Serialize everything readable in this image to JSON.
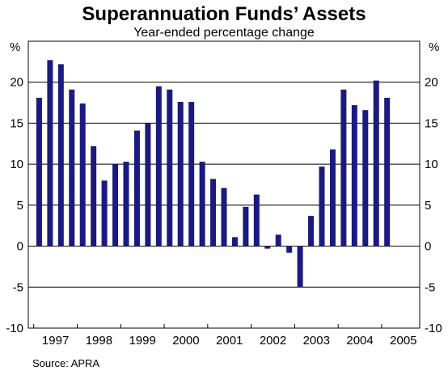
{
  "chart_data": {
    "type": "bar",
    "title": "Superannuation Funds’ Assets",
    "subtitle": "Year-ended percentage change",
    "ylabel_left": "%",
    "ylabel_right": "%",
    "ylim": [
      -10,
      25
    ],
    "yticks": [
      -10,
      -5,
      0,
      5,
      10,
      15,
      20
    ],
    "xlim": [
      1996.75,
      2005.75
    ],
    "x_labels": [
      "1997",
      "1998",
      "1999",
      "2000",
      "2001",
      "2002",
      "2003",
      "2004",
      "2005"
    ],
    "bar_color": "#1a1a80",
    "series": [
      {
        "x": [
          1997.0,
          1997.25,
          1997.5,
          1997.75,
          1998.0,
          1998.25,
          1998.5,
          1998.75,
          1999.0,
          1999.25,
          1999.5,
          1999.75,
          2000.0,
          2000.25,
          2000.5,
          2000.75,
          2001.0,
          2001.25,
          2001.5,
          2001.75,
          2002.0,
          2002.25,
          2002.5,
          2002.75,
          2003.0,
          2003.25,
          2003.5,
          2003.75,
          2004.0,
          2004.25,
          2004.5,
          2004.75,
          2005.0,
          2005.25
        ],
        "values": [
          18.1,
          22.7,
          22.2,
          19.1,
          17.4,
          12.2,
          8.0,
          10.0,
          10.3,
          14.1,
          15.0,
          19.5,
          19.1,
          17.6,
          17.6,
          10.3,
          8.2,
          7.1,
          1.1,
          4.8,
          6.3,
          -0.3,
          1.4,
          -0.8,
          -5.0,
          3.7,
          9.7,
          11.8,
          19.1,
          17.2,
          16.6,
          20.2,
          18.1,
          null
        ]
      }
    ]
  },
  "source": "Source: APRA"
}
